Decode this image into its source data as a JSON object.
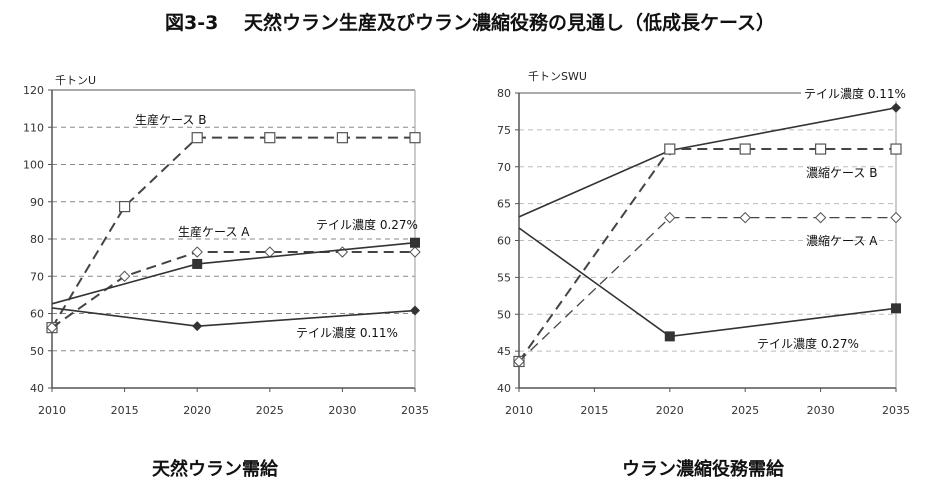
{
  "title": "図3-3　 天然ウラン生産及びウラン濃縮役務の見通し（低成長ケース）",
  "chart_data": [
    {
      "type": "line",
      "subtitle": "天然ウラン需給",
      "ylabel": "千トンU",
      "x": [
        2010,
        2015,
        2020,
        2025,
        2030,
        2035
      ],
      "ylim": [
        40,
        120
      ],
      "yticks": [
        40,
        50,
        60,
        70,
        80,
        90,
        100,
        110,
        120
      ],
      "grid": true,
      "series": [
        {
          "name": "生産ケース B",
          "style": "dashed",
          "marker": "open-square",
          "x": [
            2010,
            2015,
            2020,
            2025,
            2030,
            2035
          ],
          "values": [
            56.2,
            88.7,
            107.2,
            107.2,
            107.2,
            107.2
          ]
        },
        {
          "name": "生産ケース A",
          "style": "dashed",
          "marker": "open-diamond",
          "x": [
            2010,
            2015,
            2020,
            2025,
            2030,
            2035
          ],
          "values": [
            56.2,
            70,
            76.5,
            76.5,
            76.5,
            76.5
          ]
        },
        {
          "name": "テイル濃度 0.27%",
          "style": "solid",
          "marker": "filled-square",
          "x": [
            2010,
            2020,
            2035
          ],
          "values": [
            62.6,
            73.3,
            79.0
          ]
        },
        {
          "name": "テイル濃度 0.11%",
          "style": "solid",
          "marker": "filled-diamond",
          "x": [
            2010,
            2020,
            2035
          ],
          "values": [
            61.5,
            56.6,
            60.8
          ]
        }
      ]
    },
    {
      "type": "line",
      "subtitle": "ウラン濃縮役務需給",
      "ylabel": "千トンSWU",
      "x": [
        2010,
        2015,
        2020,
        2025,
        2030,
        2035
      ],
      "ylim": [
        40,
        80
      ],
      "yticks": [
        40,
        45,
        50,
        55,
        60,
        65,
        70,
        75,
        80
      ],
      "grid": true,
      "series": [
        {
          "name": "テイル濃度 0.11%",
          "style": "solid",
          "marker": "filled-diamond",
          "x": [
            2010,
            2020,
            2035
          ],
          "values": [
            63.2,
            72.2,
            78.0
          ]
        },
        {
          "name": "濃縮ケース B",
          "style": "dashed",
          "marker": "open-square",
          "x": [
            2010,
            2020,
            2025,
            2030,
            2035
          ],
          "values": [
            43.6,
            72.4,
            72.4,
            72.4,
            72.4
          ]
        },
        {
          "name": "濃縮ケース A",
          "style": "dashed",
          "marker": "open-diamond",
          "x": [
            2010,
            2020,
            2025,
            2030,
            2035
          ],
          "values": [
            43.6,
            63.1,
            63.1,
            63.1,
            63.1
          ]
        },
        {
          "name": "テイル濃度 0.27%",
          "style": "solid",
          "marker": "filled-square",
          "x": [
            2010,
            2020,
            2035
          ],
          "values": [
            61.7,
            47.0,
            50.8
          ]
        }
      ]
    }
  ]
}
